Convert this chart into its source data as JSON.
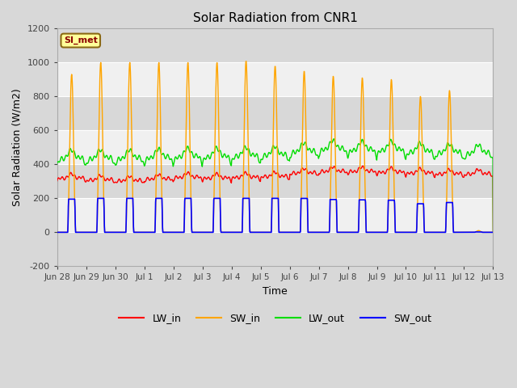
{
  "title": "Solar Radiation from CNR1",
  "xlabel": "Time",
  "ylabel": "Solar Radiation (W/m2)",
  "ylim": [
    -200,
    1200
  ],
  "yticks": [
    -200,
    0,
    200,
    400,
    600,
    800,
    1000,
    1200
  ],
  "bg_color": "#d8d8d8",
  "plot_bg_color": "#ffffff",
  "grid_color": "#c8c8c8",
  "band_color_dark": "#d8d8d8",
  "band_color_light": "#f0f0f0",
  "annotation_text": "SI_met",
  "annotation_bg": "#ffff99",
  "annotation_border": "#8B6914",
  "annotation_text_color": "#8B0000",
  "colors": {
    "LW_in": "#ff0000",
    "SW_in": "#ffa500",
    "LW_out": "#00dd00",
    "SW_out": "#0000ff"
  },
  "day_labels": [
    "Jun 28",
    "Jun 29",
    "Jun 30",
    "Jul 1",
    "Jul 2",
    "Jul 3",
    "Jul 4",
    "Jul 5",
    "Jul 6",
    "Jul 7",
    "Jul 8",
    "Jul 9",
    "Jul 10",
    "Jul 11",
    "Jul 12",
    "Jul 13"
  ],
  "sw_in_peaks": [
    930,
    1000,
    1000,
    1000,
    1000,
    1000,
    1010,
    980,
    950,
    920,
    910,
    900,
    800,
    835,
    10
  ],
  "lw_in_bases": [
    300,
    290,
    285,
    295,
    305,
    300,
    305,
    310,
    330,
    340,
    340,
    335,
    330,
    325,
    325
  ],
  "lw_out_bases": [
    390,
    390,
    390,
    395,
    400,
    400,
    405,
    410,
    430,
    445,
    440,
    440,
    430,
    425,
    420
  ]
}
